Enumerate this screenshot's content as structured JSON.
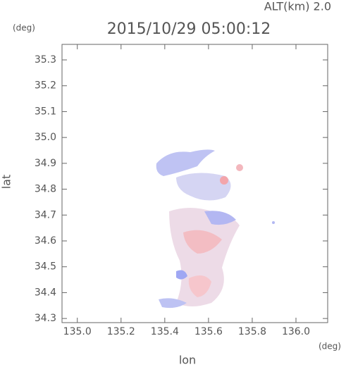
{
  "chart_data": {
    "type": "map",
    "title": "2015/10/29 05:00:12",
    "altitude_label": "ALT(km) 2.0",
    "y_unit": "(deg)",
    "x_unit": "(deg)",
    "xlabel": "lon",
    "ylabel": "lat",
    "xlim": [
      134.93,
      136.145
    ],
    "ylim": [
      34.284,
      35.36
    ],
    "xticks": [
      {
        "value": 135,
        "label": "135.0"
      },
      135.2,
      135.4,
      135.6,
      135.8,
      {
        "value": 136,
        "label": "136.0"
      }
    ],
    "yticks": [
      34.3,
      34.4,
      34.5,
      34.6,
      34.7,
      34.8,
      34.9,
      {
        "value": 35,
        "label": "35.0"
      },
      35.1,
      35.2,
      35.3
    ]
  }
}
